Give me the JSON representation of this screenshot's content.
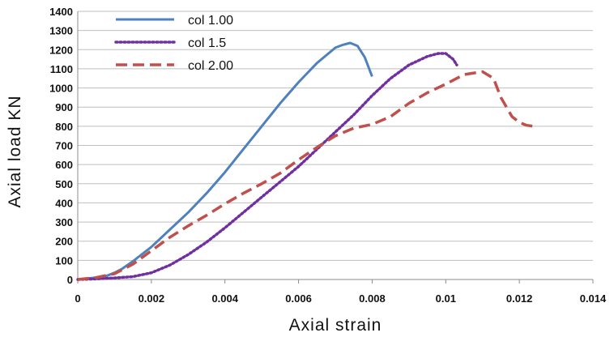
{
  "chart_data": {
    "type": "line",
    "xlabel": "Axial strain",
    "ylabel": "Axial load KN",
    "xlim": [
      0,
      0.014
    ],
    "ylim": [
      0,
      1400
    ],
    "xticks": [
      "0",
      "0.002",
      "0.004",
      "0.006",
      "0.008",
      "0.01",
      "0.012",
      "0.014"
    ],
    "yticks": [
      "0",
      "100",
      "200",
      "300",
      "400",
      "500",
      "600",
      "700",
      "800",
      "900",
      "1000",
      "1100",
      "1200",
      "1300",
      "1400"
    ],
    "grid": "horizontal",
    "legend": "top-left",
    "series": [
      {
        "name": "col 1.00",
        "color": "#4f81bd",
        "style": "solid",
        "x": [
          0,
          0.0005,
          0.0008,
          0.001,
          0.0012,
          0.0015,
          0.002,
          0.0025,
          0.003,
          0.0035,
          0.004,
          0.0045,
          0.005,
          0.0055,
          0.006,
          0.0065,
          0.007,
          0.0072,
          0.0074,
          0.0076,
          0.0078,
          0.008
        ],
        "y": [
          0,
          10,
          20,
          35,
          55,
          95,
          170,
          260,
          350,
          450,
          560,
          680,
          800,
          920,
          1030,
          1130,
          1210,
          1225,
          1235,
          1220,
          1160,
          1060
        ]
      },
      {
        "name": "col 1.5",
        "color": "#7030a0",
        "style": "dotted",
        "x": [
          0,
          0.0005,
          0.001,
          0.0015,
          0.002,
          0.0025,
          0.003,
          0.0035,
          0.004,
          0.0045,
          0.005,
          0.0055,
          0.006,
          0.0065,
          0.007,
          0.0075,
          0.008,
          0.0085,
          0.009,
          0.0095,
          0.0098,
          0.01,
          0.0102,
          0.0103
        ],
        "y": [
          0,
          3,
          8,
          15,
          35,
          75,
          130,
          195,
          270,
          350,
          430,
          510,
          590,
          680,
          770,
          860,
          960,
          1050,
          1120,
          1165,
          1180,
          1180,
          1150,
          1120
        ]
      },
      {
        "name": "col 2.00",
        "color": "#c0504d",
        "style": "dashed",
        "x": [
          0,
          0.0005,
          0.001,
          0.0015,
          0.002,
          0.0025,
          0.003,
          0.0035,
          0.004,
          0.0045,
          0.005,
          0.0055,
          0.006,
          0.0065,
          0.007,
          0.0075,
          0.008,
          0.0085,
          0.009,
          0.0095,
          0.01,
          0.0105,
          0.011,
          0.0113,
          0.0115,
          0.0118,
          0.012,
          0.0122,
          0.0124
        ],
        "y": [
          0,
          10,
          30,
          80,
          150,
          220,
          280,
          335,
          395,
          450,
          500,
          555,
          625,
          690,
          750,
          790,
          810,
          850,
          920,
          975,
          1020,
          1070,
          1085,
          1050,
          950,
          850,
          820,
          805,
          800
        ]
      }
    ]
  }
}
